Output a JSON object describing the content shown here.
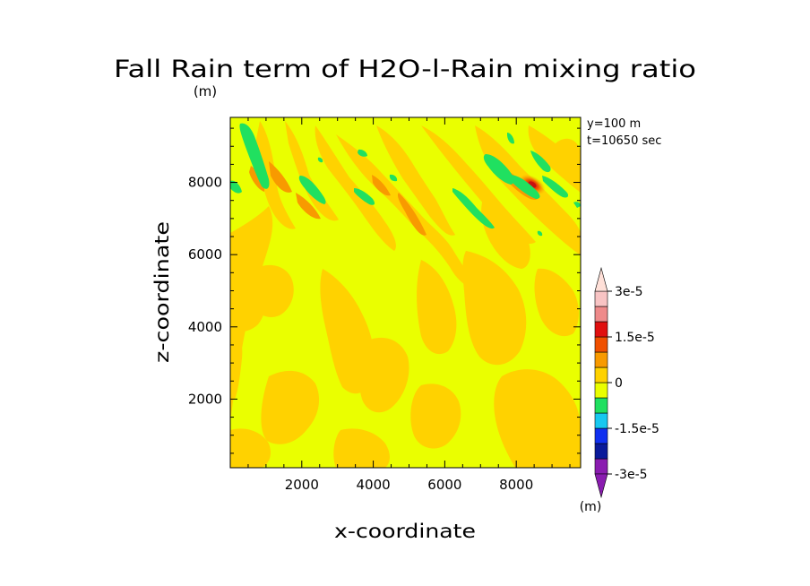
{
  "chart_data": {
    "type": "heatmap",
    "title": "Fall Rain term of H2O-l-Rain mixing ratio",
    "units_label": "(m)",
    "annotations": [
      "y=100 m",
      "t=10650 sec"
    ],
    "xlabel": "x-coordinate",
    "ylabel": "z-coordinate",
    "xlim": [
      0,
      9800
    ],
    "ylim": [
      100,
      9800
    ],
    "xticks": [
      2000,
      4000,
      6000,
      8000
    ],
    "yticks": [
      2000,
      4000,
      6000,
      8000
    ],
    "xtick_labels": [
      "2000",
      "4000",
      "6000",
      "8000"
    ],
    "ytick_labels": [
      "2000",
      "4000",
      "6000",
      "8000"
    ],
    "colorbar": {
      "labels": [
        "3e-5",
        "1.5e-5",
        "0",
        "-1.5e-5",
        "-3e-5"
      ],
      "label_values": [
        3e-05,
        1.5e-05,
        0,
        -1.5e-05,
        -3e-05
      ],
      "units": "(m)",
      "levels": [
        -3e-05,
        -2.5e-05,
        -2e-05,
        -1.5e-05,
        -1e-05,
        -5e-06,
        0,
        5e-06,
        1e-05,
        1.5e-05,
        2e-05,
        2.5e-05,
        3e-05
      ],
      "colors": [
        "#8a1cb0",
        "#0a1a9a",
        "#1030f0",
        "#18c8f0",
        "#20e060",
        "#eaff00",
        "#ffd200",
        "#f89a00",
        "#f05000",
        "#e01010",
        "#ee8a8a",
        "#f8c4c4",
        "#ffe0d8"
      ]
    },
    "background_level_color": "#eaff00",
    "features": [
      {
        "kind": "band",
        "x": 600,
        "z": 7200,
        "sign": "positive"
      },
      {
        "kind": "band",
        "x": 900,
        "z": 4500,
        "sign": "positive"
      },
      {
        "kind": "band",
        "x": 3700,
        "z": 6200,
        "sign": "positive"
      },
      {
        "kind": "band",
        "x": 6500,
        "z": 5000,
        "sign": "positive"
      },
      {
        "kind": "band",
        "x": 8800,
        "z": 2200,
        "sign": "positive"
      },
      {
        "kind": "streak",
        "x": 500,
        "z": 8600,
        "sign": "negative"
      },
      {
        "kind": "streak",
        "x": 2400,
        "z": 7900,
        "sign": "negative"
      },
      {
        "kind": "streak",
        "x": 3600,
        "z": 7800,
        "sign": "negative"
      },
      {
        "kind": "streak",
        "x": 6800,
        "z": 7600,
        "sign": "negative"
      },
      {
        "kind": "streak",
        "x": 7800,
        "z": 8400,
        "sign": "negative"
      },
      {
        "kind": "streak",
        "x": 9000,
        "z": 8100,
        "sign": "negative"
      },
      {
        "kind": "max",
        "x": 8500,
        "z": 8000,
        "value": 2e-05
      }
    ]
  }
}
